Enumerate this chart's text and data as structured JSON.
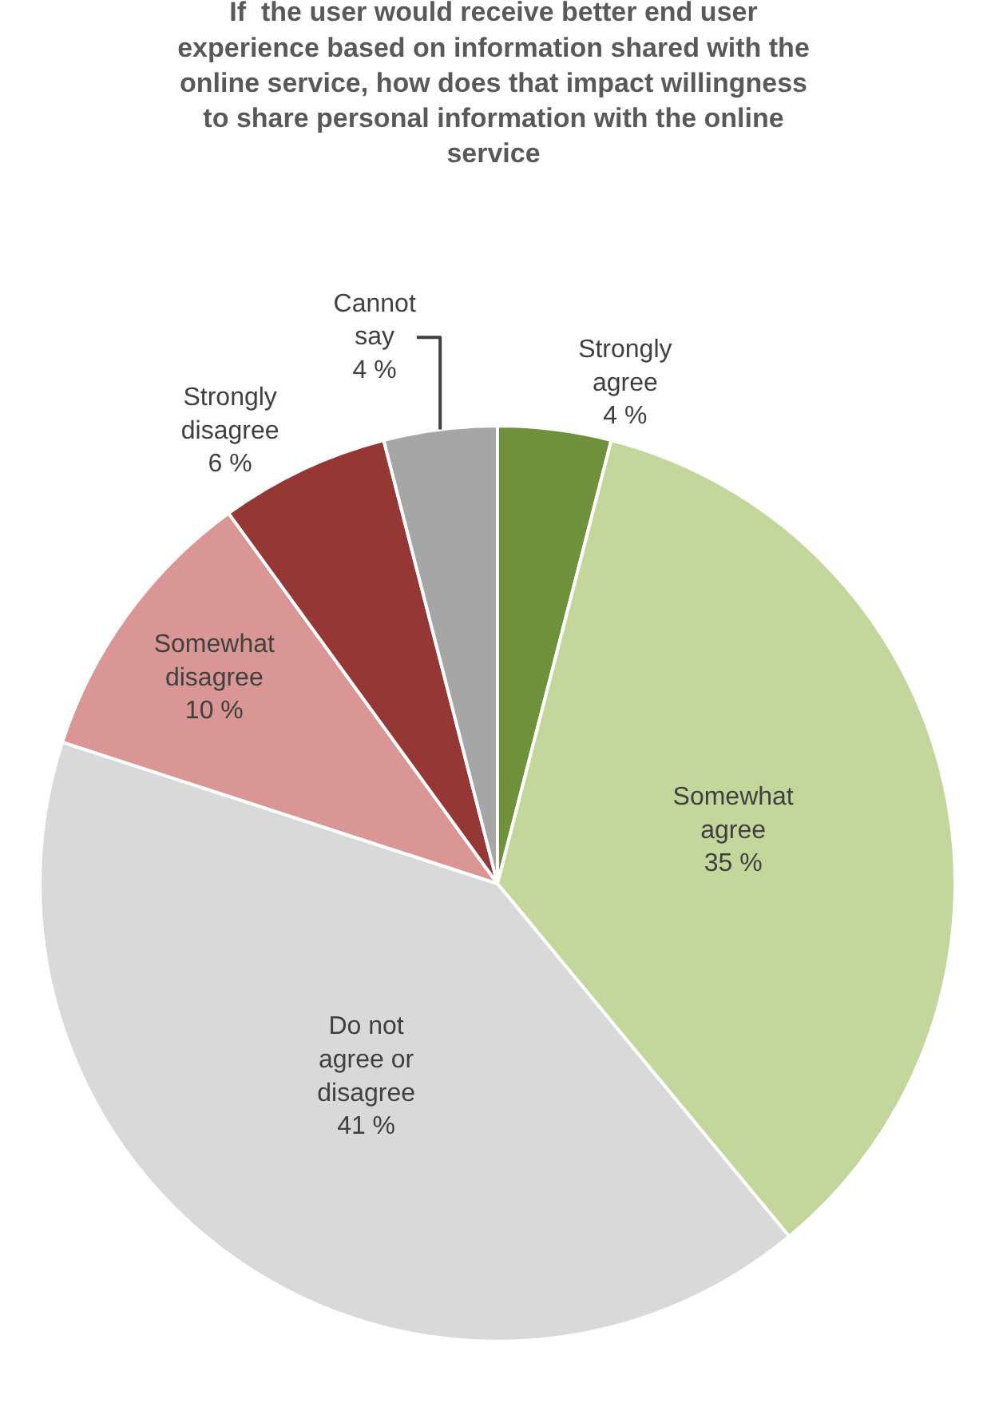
{
  "chart_data": {
    "type": "pie",
    "title": "If  the user would receive better end user experience based on information shared with the online service, how does that impact willingness to share personal information with the online service",
    "categories": [
      "Strongly agree",
      "Somewhat agree",
      "Do not agree or disagree",
      "Somewhat disagree",
      "Strongly disagree",
      "Cannot say"
    ],
    "values": [
      4,
      35,
      41,
      10,
      6,
      4
    ],
    "value_labels": [
      "4 %",
      "35 %",
      "41 %",
      "10 %",
      "6 %",
      "4 %"
    ],
    "colors": [
      "#70913b",
      "#c3d69b",
      "#d9d9d9",
      "#d99694",
      "#953735",
      "#a6a6a6"
    ],
    "legend": false
  }
}
